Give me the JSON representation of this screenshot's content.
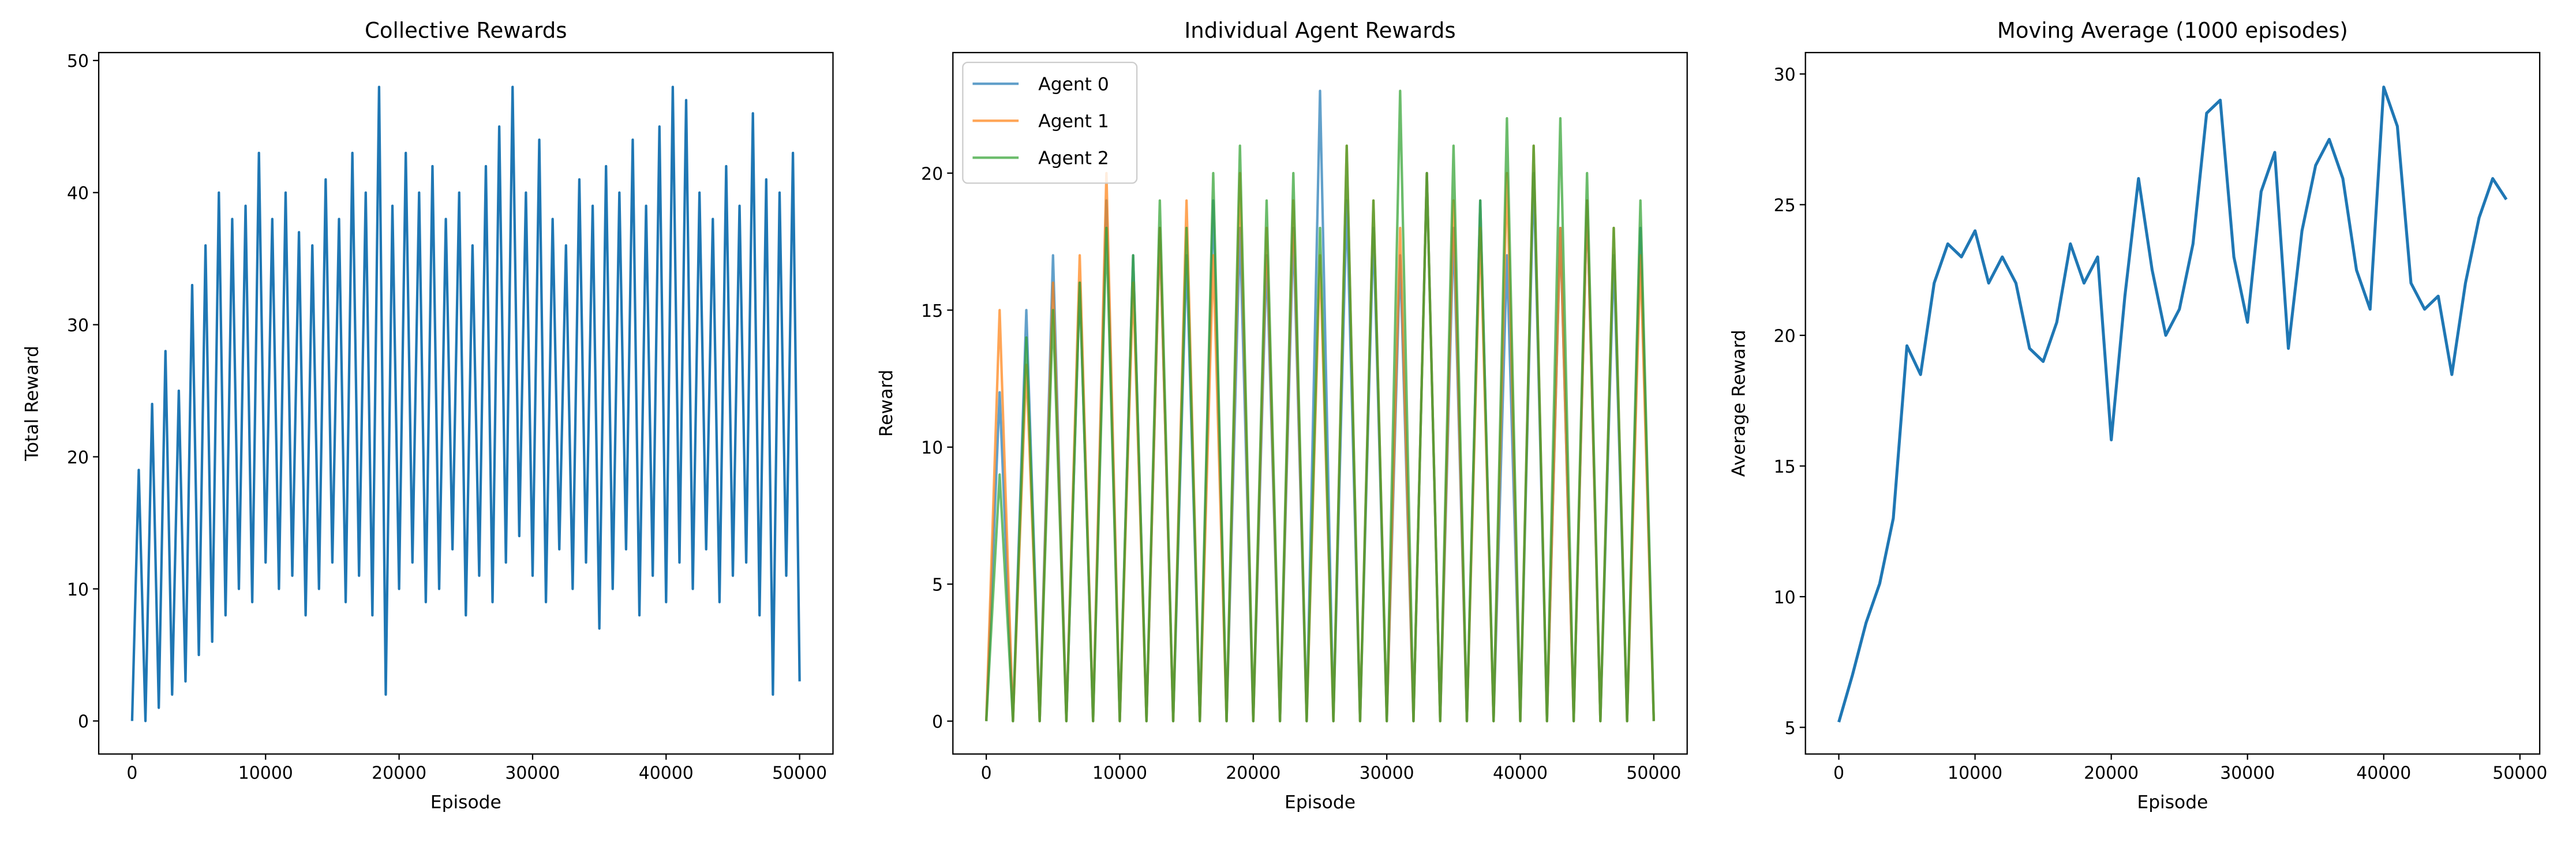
{
  "chart_data": [
    {
      "type": "line",
      "title": "Collective Rewards",
      "xlabel": "Episode",
      "ylabel": "Total Reward",
      "color": "#1f77b4",
      "line_width": 1.5,
      "x": [
        0,
        500,
        1000,
        1500,
        2000,
        2500,
        3000,
        3500,
        4000,
        4500,
        5000,
        5500,
        6000,
        6500,
        7000,
        7500,
        8000,
        8500,
        9000,
        9500,
        10000,
        10500,
        11000,
        11500,
        12000,
        12500,
        13000,
        13500,
        14000,
        14500,
        15000,
        15500,
        16000,
        16500,
        17000,
        17500,
        18000,
        18500,
        19000,
        19500,
        20000,
        20500,
        21000,
        21500,
        22000,
        22500,
        23000,
        23500,
        24000,
        24500,
        25000,
        25500,
        26000,
        26500,
        27000,
        27500,
        28000,
        28500,
        29000,
        29500,
        30000,
        30500,
        31000,
        31500,
        32000,
        32500,
        33000,
        33500,
        34000,
        34500,
        35000,
        35500,
        36000,
        36500,
        37000,
        37500,
        38000,
        38500,
        39000,
        39500,
        40000,
        40500,
        41000,
        41500,
        42000,
        42500,
        43000,
        43500,
        44000,
        44500,
        45000,
        45500,
        46000,
        46500,
        47000,
        47500,
        48000,
        48500,
        49000,
        49500,
        50000
      ],
      "values": [
        0,
        19,
        0,
        24,
        1,
        28,
        2,
        25,
        3,
        33,
        5,
        36,
        6,
        40,
        8,
        38,
        10,
        39,
        9,
        43,
        12,
        38,
        10,
        40,
        11,
        37,
        8,
        36,
        10,
        41,
        12,
        38,
        9,
        43,
        11,
        40,
        8,
        48,
        2,
        39,
        10,
        43,
        12,
        40,
        9,
        42,
        10,
        38,
        13,
        40,
        8,
        36,
        11,
        42,
        9,
        45,
        12,
        48,
        14,
        40,
        11,
        44,
        9,
        38,
        13,
        36,
        10,
        41,
        12,
        39,
        7,
        42,
        10,
        40,
        13,
        44,
        8,
        39,
        11,
        45,
        9,
        48,
        12,
        47,
        10,
        40,
        13,
        38,
        9,
        42,
        11,
        39,
        12,
        46,
        8,
        41,
        2,
        40,
        11,
        43,
        3
      ],
      "xlim": [
        -2500,
        52500
      ],
      "xticks": [
        0,
        10000,
        20000,
        30000,
        40000,
        50000
      ],
      "ylim": [
        -2.5,
        50.6
      ],
      "yticks": [
        0,
        10,
        20,
        30,
        40,
        50
      ]
    },
    {
      "type": "line",
      "title": "Individual Agent Rewards",
      "xlabel": "Episode",
      "ylabel": "Reward",
      "alpha": 0.7,
      "line_width": 1.5,
      "legend": "upper left",
      "x": [
        0,
        1000,
        2000,
        3000,
        4000,
        5000,
        6000,
        7000,
        8000,
        9000,
        10000,
        11000,
        12000,
        13000,
        14000,
        15000,
        16000,
        17000,
        18000,
        19000,
        20000,
        21000,
        22000,
        23000,
        24000,
        25000,
        26000,
        27000,
        28000,
        29000,
        30000,
        31000,
        32000,
        33000,
        34000,
        35000,
        36000,
        37000,
        38000,
        39000,
        40000,
        41000,
        42000,
        43000,
        44000,
        45000,
        46000,
        47000,
        48000,
        49000,
        50000
      ],
      "series": [
        {
          "name": "Agent 0",
          "color": "#1f77b4",
          "values": [
            0,
            12,
            0,
            15,
            0,
            17,
            0,
            16,
            0,
            19,
            0,
            17,
            0,
            18,
            0,
            17,
            0,
            19,
            0,
            18,
            0,
            17,
            0,
            18,
            0,
            23,
            0,
            19,
            0,
            18,
            0,
            17,
            0,
            20,
            0,
            18,
            0,
            19,
            0,
            17,
            0,
            20,
            0,
            18,
            0,
            19,
            0,
            17,
            0,
            18,
            0
          ]
        },
        {
          "name": "Agent 1",
          "color": "#ff7f0e",
          "values": [
            0,
            15,
            0,
            13,
            0,
            16,
            0,
            17,
            0,
            20,
            0,
            16,
            0,
            18,
            0,
            19,
            0,
            17,
            0,
            20,
            0,
            18,
            0,
            19,
            0,
            17,
            0,
            21,
            0,
            19,
            0,
            18,
            0,
            20,
            0,
            19,
            0,
            18,
            0,
            20,
            0,
            21,
            0,
            18,
            0,
            19,
            0,
            18,
            0,
            17,
            0
          ]
        },
        {
          "name": "Agent 2",
          "color": "#2ca02c",
          "values": [
            0,
            9,
            0,
            14,
            0,
            15,
            0,
            16,
            0,
            18,
            0,
            17,
            0,
            19,
            0,
            18,
            0,
            20,
            0,
            21,
            0,
            19,
            0,
            20,
            0,
            18,
            0,
            21,
            0,
            19,
            0,
            23,
            0,
            20,
            0,
            21,
            0,
            19,
            0,
            22,
            0,
            21,
            0,
            22,
            0,
            20,
            0,
            18,
            0,
            19,
            0
          ]
        }
      ],
      "xlim": [
        -2500,
        52500
      ],
      "xticks": [
        0,
        10000,
        20000,
        30000,
        40000,
        50000
      ],
      "ylim": [
        -1.2,
        24.4
      ],
      "yticks": [
        0,
        5,
        10,
        15,
        20
      ]
    },
    {
      "type": "line",
      "title": "Moving Average (1000 episodes)",
      "xlabel": "Episode",
      "ylabel": "Average Reward",
      "color": "#1f77b4",
      "line_width": 1.8,
      "x": [
        0,
        1000,
        2000,
        3000,
        4000,
        5000,
        6000,
        7000,
        8000,
        9000,
        10000,
        11000,
        12000,
        13000,
        14000,
        15000,
        16000,
        17000,
        18000,
        19000,
        20000,
        21000,
        22000,
        23000,
        24000,
        25000,
        26000,
        27000,
        28000,
        29000,
        30000,
        31000,
        32000,
        33000,
        34000,
        35000,
        36000,
        37000,
        38000,
        39000,
        40000,
        41000,
        42000,
        43000,
        44000,
        45000,
        46000,
        47000,
        48000,
        49000
      ],
      "values": [
        5.2,
        7,
        9,
        10.5,
        13,
        19.6,
        18.5,
        22,
        23.5,
        23,
        24,
        22,
        23,
        22,
        19.5,
        19,
        20.5,
        23.5,
        22,
        23,
        16,
        21.5,
        26,
        22.5,
        20,
        21,
        23.5,
        28.5,
        29,
        23,
        20.5,
        25.5,
        27,
        19.5,
        24,
        26.5,
        27.5,
        26,
        22.5,
        21,
        29.5,
        28,
        22,
        21,
        21.5,
        18.5,
        22,
        24.5,
        26,
        25.2
      ],
      "xlim": [
        -2450,
        51450
      ],
      "xticks": [
        0,
        10000,
        20000,
        30000,
        40000,
        50000
      ],
      "ylim": [
        3.98,
        30.82
      ],
      "yticks": [
        5,
        10,
        15,
        20,
        25,
        30
      ]
    }
  ]
}
